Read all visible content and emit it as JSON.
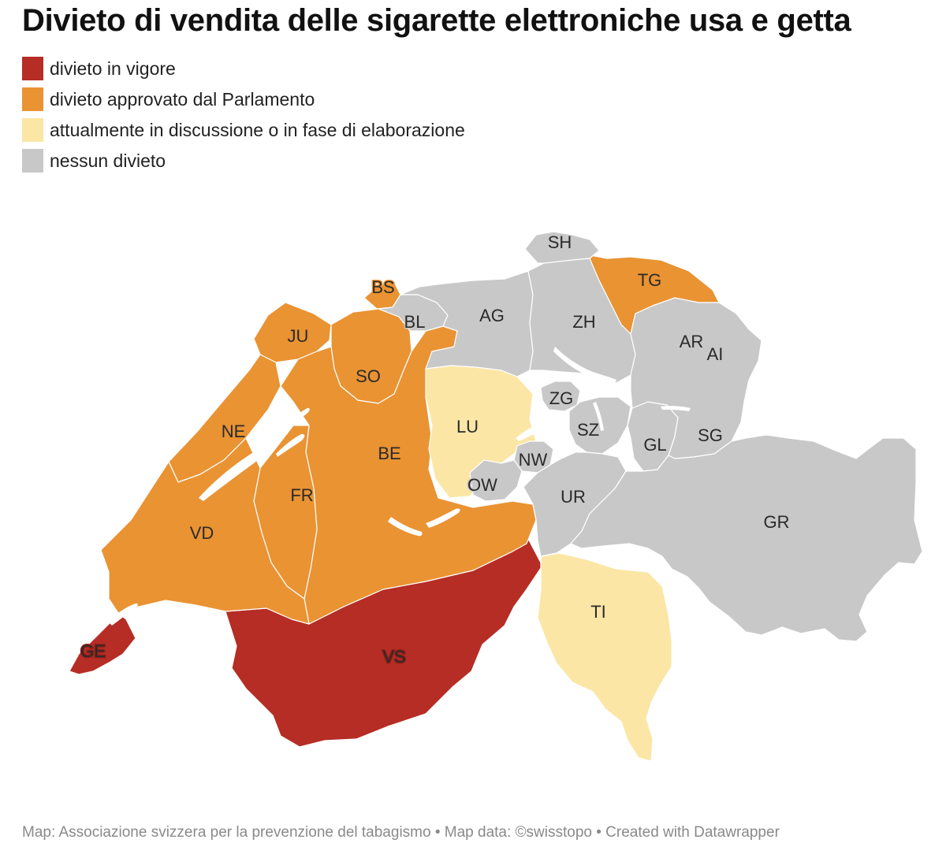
{
  "title": "Divieto di vendita delle sigarette elettroniche usa e getta",
  "legend": [
    {
      "label": "divieto in vigore",
      "color": "#b52d25"
    },
    {
      "label": "divieto approvato dal Parlamento",
      "color": "#e99333"
    },
    {
      "label": "attualmente in discussione o in fase di elaborazione",
      "color": "#fbe6a6"
    },
    {
      "label": "nessun divieto",
      "color": "#c8c8c8"
    }
  ],
  "regions": [
    {
      "code": "GE",
      "status": 0
    },
    {
      "code": "VS",
      "status": 0
    },
    {
      "code": "JU",
      "status": 1
    },
    {
      "code": "BS",
      "status": 1
    },
    {
      "code": "SO",
      "status": 1
    },
    {
      "code": "NE",
      "status": 1
    },
    {
      "code": "BE",
      "status": 1
    },
    {
      "code": "FR",
      "status": 1
    },
    {
      "code": "VD",
      "status": 1
    },
    {
      "code": "TG",
      "status": 1
    },
    {
      "code": "LU",
      "status": 2
    },
    {
      "code": "TI",
      "status": 2
    },
    {
      "code": "SH",
      "status": 3
    },
    {
      "code": "BL",
      "status": 3
    },
    {
      "code": "AG",
      "status": 3
    },
    {
      "code": "ZH",
      "status": 3
    },
    {
      "code": "AR",
      "status": 3
    },
    {
      "code": "AI",
      "status": 3
    },
    {
      "code": "ZG",
      "status": 3
    },
    {
      "code": "SZ",
      "status": 3
    },
    {
      "code": "GL",
      "status": 3
    },
    {
      "code": "SG",
      "status": 3
    },
    {
      "code": "NW",
      "status": 3
    },
    {
      "code": "OW",
      "status": 3
    },
    {
      "code": "UR",
      "status": 3
    },
    {
      "code": "GR",
      "status": 3
    }
  ],
  "footer": "Map: Associazione svizzera per la prevenzione del tabagismo • Map data: ©swisstopo • Created with Datawrapper"
}
